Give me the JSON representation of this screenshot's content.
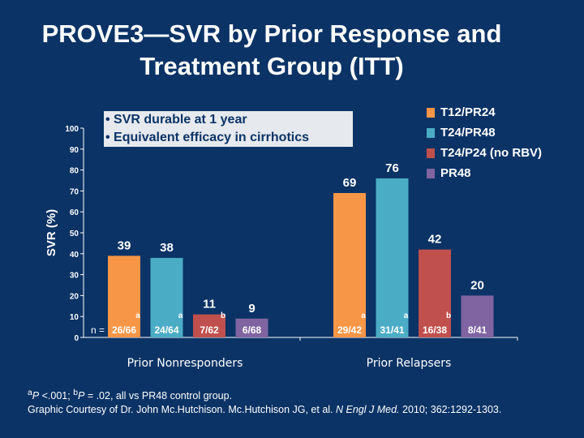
{
  "title_line1": "PROVE3—SVR by Prior Response and",
  "title_line2": "Treatment Group (ITT)",
  "callout": [
    "• SVR durable at 1 year",
    "• Equivalent efficacy in cirrhotics"
  ],
  "footer": {
    "line1_parts": {
      "a": "a",
      "p1": "P",
      "t1": " <.001; ",
      "b": "b",
      "p2": "P",
      "t2": " = .02, all vs PR48 control group."
    },
    "line2_pre": "Graphic Courtesy of Dr. John Mc.Hutchison.  Mc.Hutchison JG, et al. ",
    "journal": "N Engl J Med.",
    "line2_post": " 2010; 362:1292-1303."
  },
  "chart_data": {
    "type": "bar",
    "ylabel": "SVR (%)",
    "ylim": [
      0,
      100
    ],
    "yticks": [
      0,
      10,
      20,
      30,
      40,
      50,
      60,
      70,
      80,
      90,
      100
    ],
    "categories": [
      "Prior Nonresponders",
      "Prior Relapsers"
    ],
    "n_prefix": "n =",
    "legend_position": "top-right",
    "series": [
      {
        "name": "T12/PR24",
        "color": "#f79646",
        "values": [
          39,
          69
        ],
        "n": [
          "26/66",
          "29/42"
        ],
        "sup": [
          "a",
          "a"
        ]
      },
      {
        "name": "T24/PR48",
        "color": "#4bacc6",
        "values": [
          38,
          76
        ],
        "n": [
          "24/64",
          "31/41"
        ],
        "sup": [
          "a",
          "a"
        ]
      },
      {
        "name": "T24/P24 (no RBV)",
        "color": "#c0504d",
        "values": [
          11,
          42
        ],
        "n": [
          "7/62",
          "16/38"
        ],
        "sup": [
          "b",
          "b"
        ]
      },
      {
        "name": "PR48",
        "color": "#8064a2",
        "values": [
          9,
          20
        ],
        "n": [
          "6/68",
          "8/41"
        ],
        "sup": [
          "",
          ""
        ]
      }
    ]
  }
}
